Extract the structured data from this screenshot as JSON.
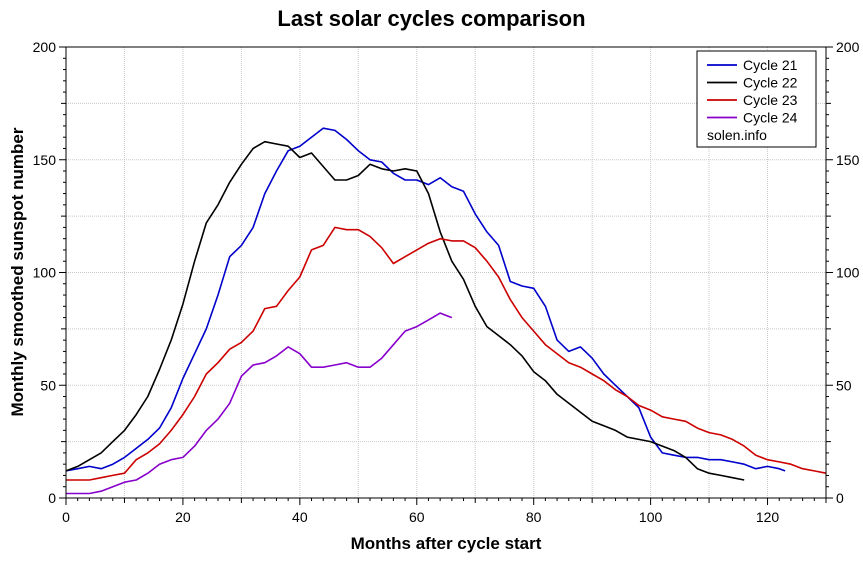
{
  "chart_data": {
    "type": "line",
    "title": "Last solar cycles comparison",
    "xlabel": "Months after cycle start",
    "ylabel": "Monthly smoothed sunspot number",
    "xlim": [
      0,
      130
    ],
    "ylim": [
      0,
      200
    ],
    "xticks": [
      "0",
      "20",
      "40",
      "60",
      "80",
      "100",
      "120"
    ],
    "yticks": [
      "0",
      "50",
      "100",
      "150",
      "200"
    ],
    "grid": true,
    "legend_position": "top-right",
    "legend_note": "solen.info",
    "series": [
      {
        "name": "Cycle 21",
        "color": "#0000cc",
        "x": [
          0,
          2,
          4,
          6,
          8,
          10,
          12,
          14,
          16,
          18,
          20,
          22,
          24,
          26,
          28,
          30,
          32,
          34,
          36,
          38,
          40,
          42,
          44,
          46,
          48,
          50,
          52,
          54,
          56,
          58,
          60,
          62,
          64,
          66,
          68,
          70,
          72,
          74,
          76,
          78,
          80,
          82,
          84,
          86,
          88,
          90,
          92,
          94,
          96,
          98,
          100,
          102,
          104,
          106,
          108,
          110,
          112,
          114,
          116,
          118,
          120,
          122,
          123
        ],
        "y": [
          12,
          13,
          14,
          13,
          15,
          18,
          22,
          26,
          31,
          40,
          53,
          64,
          75,
          90,
          107,
          112,
          120,
          135,
          145,
          154,
          156,
          160,
          164,
          163,
          159,
          154,
          150,
          149,
          144,
          141,
          141,
          139,
          142,
          138,
          136,
          126,
          118,
          112,
          96,
          94,
          93,
          85,
          70,
          65,
          67,
          62,
          55,
          50,
          45,
          40,
          27,
          20,
          19,
          18,
          18,
          17,
          17,
          16,
          15,
          13,
          14,
          13,
          12
        ]
      },
      {
        "name": "Cycle 22",
        "color": "#000000",
        "x": [
          0,
          2,
          4,
          6,
          8,
          10,
          12,
          14,
          16,
          18,
          20,
          22,
          24,
          26,
          28,
          30,
          32,
          34,
          36,
          38,
          40,
          42,
          44,
          46,
          48,
          50,
          52,
          54,
          56,
          58,
          60,
          62,
          64,
          66,
          68,
          70,
          72,
          74,
          76,
          78,
          80,
          82,
          84,
          86,
          88,
          90,
          92,
          94,
          96,
          98,
          100,
          102,
          104,
          106,
          108,
          110,
          112,
          114,
          116
        ],
        "y": [
          12,
          14,
          17,
          20,
          25,
          30,
          37,
          45,
          57,
          70,
          86,
          105,
          122,
          130,
          140,
          148,
          155,
          158,
          157,
          156,
          151,
          153,
          147,
          141,
          141,
          143,
          148,
          146,
          145,
          146,
          145,
          135,
          118,
          105,
          97,
          85,
          76,
          72,
          68,
          63,
          56,
          52,
          46,
          42,
          38,
          34,
          32,
          30,
          27,
          26,
          25,
          23,
          21,
          18,
          13,
          11,
          10,
          9,
          8
        ]
      },
      {
        "name": "Cycle 23",
        "color": "#cc0000",
        "x": [
          0,
          2,
          4,
          6,
          8,
          10,
          12,
          14,
          16,
          18,
          20,
          22,
          24,
          26,
          28,
          30,
          32,
          34,
          36,
          38,
          40,
          42,
          44,
          46,
          48,
          50,
          52,
          54,
          56,
          58,
          60,
          62,
          64,
          66,
          68,
          70,
          72,
          74,
          76,
          78,
          80,
          82,
          84,
          86,
          88,
          90,
          92,
          94,
          96,
          98,
          100,
          102,
          104,
          106,
          108,
          110,
          112,
          114,
          116,
          118,
          120,
          122,
          124,
          126,
          128,
          130
        ],
        "y": [
          8,
          8,
          8,
          9,
          10,
          11,
          17,
          20,
          24,
          30,
          37,
          45,
          55,
          60,
          66,
          69,
          74,
          84,
          85,
          92,
          98,
          110,
          112,
          120,
          119,
          119,
          116,
          111,
          104,
          107,
          110,
          113,
          115,
          114,
          114,
          111,
          105,
          98,
          88,
          80,
          74,
          68,
          64,
          60,
          58,
          55,
          52,
          48,
          45,
          41,
          39,
          36,
          35,
          34,
          31,
          29,
          28,
          26,
          23,
          19,
          17,
          16,
          15,
          13,
          12,
          11
        ]
      },
      {
        "name": "Cycle 24",
        "color": "#8800cc",
        "x": [
          0,
          2,
          4,
          6,
          8,
          10,
          12,
          14,
          16,
          18,
          20,
          22,
          24,
          26,
          28,
          30,
          32,
          34,
          36,
          38,
          40,
          42,
          44,
          46,
          48,
          50,
          52,
          54,
          56,
          58,
          60,
          62,
          64,
          66
        ],
        "y": [
          2,
          2,
          2,
          3,
          5,
          7,
          8,
          11,
          15,
          17,
          18,
          23,
          30,
          35,
          42,
          54,
          59,
          60,
          63,
          67,
          64,
          58,
          58,
          59,
          60,
          58,
          58,
          62,
          68,
          74,
          76,
          79,
          82,
          80
        ]
      }
    ]
  }
}
